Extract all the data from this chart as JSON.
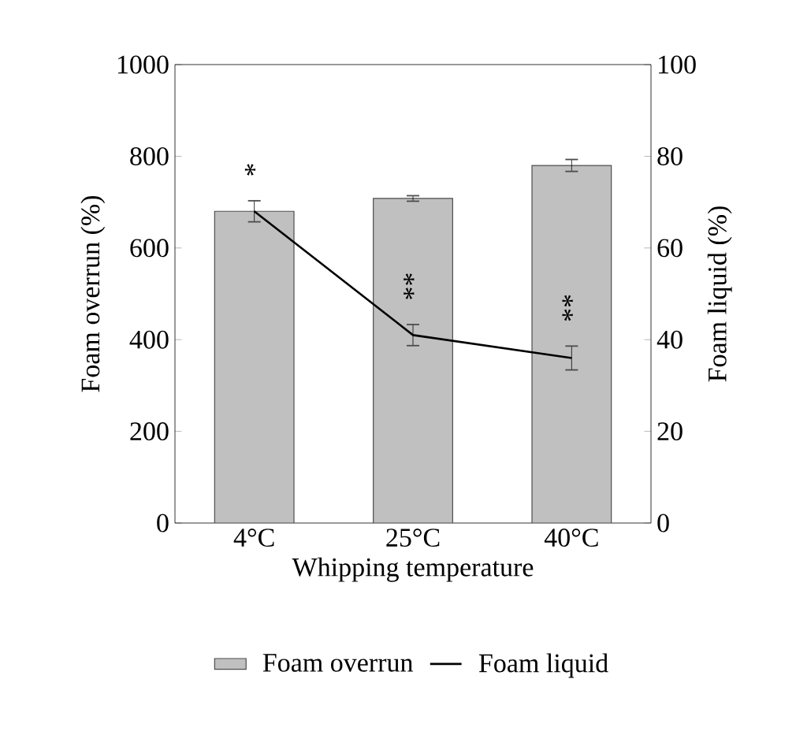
{
  "chart_data": {
    "type": "bar",
    "categories": [
      "4°C",
      "25°C",
      "40°C"
    ],
    "series": [
      {
        "name": "Foam overrun",
        "color": "#c0c0c0",
        "values": [
          680,
          708,
          780
        ],
        "errors": [
          null,
          6,
          13
        ]
      },
      {
        "name": "Foam liquid",
        "type": "line",
        "axis": "y2",
        "color": "#000000",
        "values": [
          68,
          41,
          36
        ],
        "errors": [
          2.3,
          2.3,
          2.6
        ]
      }
    ],
    "xlabel": "Whipping temperature",
    "ylabel": "Foam overrun (%)",
    "y2label": "Foam liquid (%)",
    "ylim": [
      0,
      1000
    ],
    "yticks": [
      0,
      200,
      400,
      600,
      800,
      1000
    ],
    "y2lim": [
      0,
      100
    ],
    "y2ticks": [
      0,
      20,
      40,
      60,
      80,
      100
    ],
    "annotations": [
      "*",
      "**",
      "**"
    ],
    "legend": "bottom"
  }
}
